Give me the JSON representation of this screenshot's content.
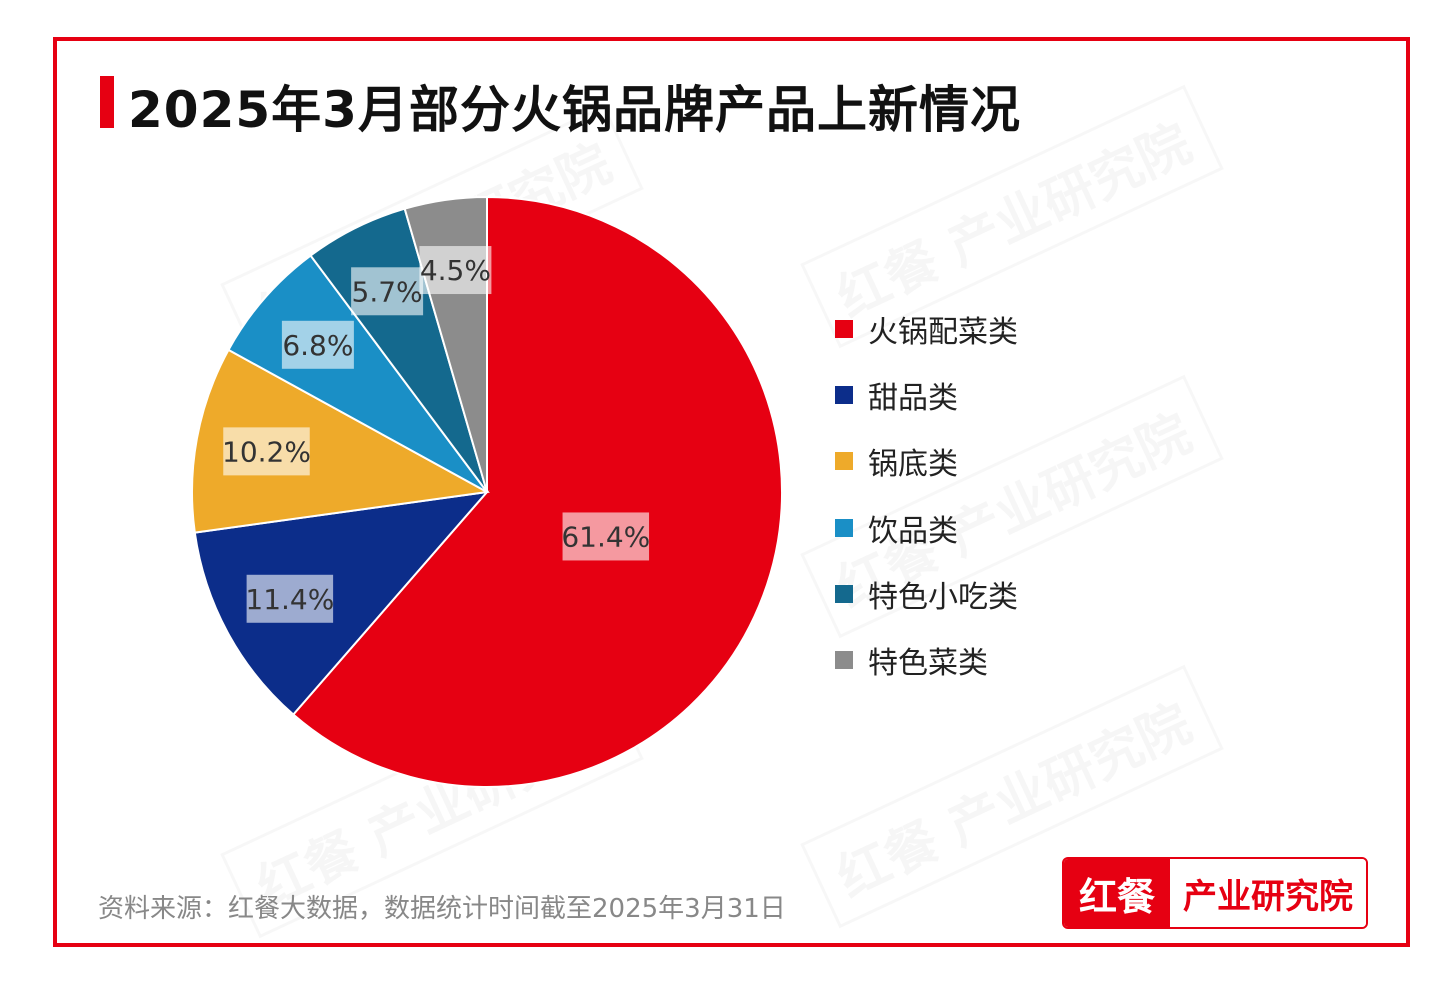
{
  "chart_data": {
    "type": "pie",
    "title": "2025年3月部分火锅品牌产品上新情况",
    "start": "top",
    "direction": "clockwise",
    "categories": [
      "火锅配菜类",
      "甜品类",
      "锅底类",
      "饮品类",
      "特色小吃类",
      "特色菜类"
    ],
    "values": [
      61.4,
      11.4,
      10.2,
      6.8,
      5.7,
      4.5
    ],
    "data_labels": [
      "61.4%",
      "11.4%",
      "10.2%",
      "6.8%",
      "5.7%",
      "4.5%"
    ],
    "colors": [
      "#e60012",
      "#0c2d8a",
      "#eeaa2a",
      "#1a8fc6",
      "#14698e",
      "#8c8c8c"
    ],
    "legend_position": "right"
  },
  "source": "资料来源：红餐大数据，数据统计时间截至2025年3月31日",
  "logo": {
    "left": "红餐",
    "right": "产业研究院"
  },
  "watermark": "红餐 产业研究院"
}
